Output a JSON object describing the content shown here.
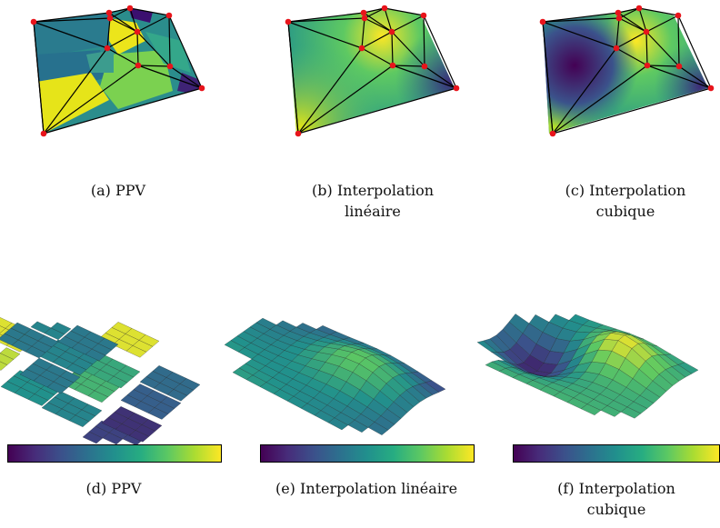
{
  "captions": {
    "a": "(a) PPV",
    "b_line1": "(b) Interpolation",
    "b_line2": "linéaire",
    "c_line1": "(c) Interpolation",
    "c_line2": "cubique",
    "d": "(d) PPV",
    "e": "(e) Interpolation linéaire",
    "f_line1": "(f) Interpolation",
    "f_line2": "cubique"
  },
  "colormap": [
    "#440154",
    "#3b528b",
    "#21918c",
    "#5ec962",
    "#fde725"
  ],
  "point_color": "#e8141b",
  "edge_color": "#000000"
}
